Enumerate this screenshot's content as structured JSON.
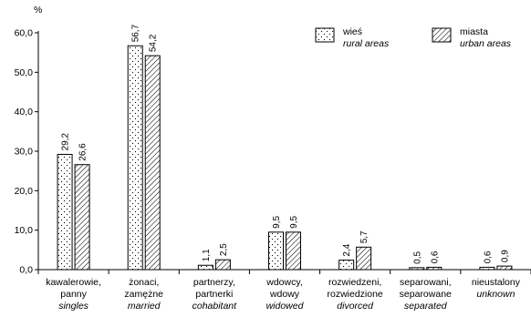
{
  "chart_data": {
    "type": "bar",
    "ylabel": "%",
    "ylim": [
      0,
      60
    ],
    "yticks": [
      "0,0",
      "10,0",
      "20,0",
      "30,0",
      "40,0",
      "50,0",
      "60,0"
    ],
    "grid": false,
    "legend_position": "top-right",
    "categories": [
      {
        "pl": [
          "kawalerowie,",
          "panny"
        ],
        "en": "singles"
      },
      {
        "pl": [
          "żonaci,",
          "zamężne"
        ],
        "en": "married"
      },
      {
        "pl": [
          "partnerzy,",
          "partnerki"
        ],
        "en": "cohabitant"
      },
      {
        "pl": [
          "wdowcy,",
          "wdowy"
        ],
        "en": "widowed"
      },
      {
        "pl": [
          "rozwiedzeni,",
          "rozwiedzione"
        ],
        "en": "divorced"
      },
      {
        "pl": [
          "separowani,",
          "separowane"
        ],
        "en": "separated"
      },
      {
        "pl": [
          "nieustalony"
        ],
        "en": "unknown"
      }
    ],
    "series": [
      {
        "name": "wieś",
        "name_en": "rural areas",
        "pattern": "dots",
        "values": [
          29.2,
          56.7,
          1.1,
          9.5,
          2.4,
          0.5,
          0.6
        ],
        "labels": [
          "29,2",
          "56,7",
          "1,1",
          "9,5",
          "2,4",
          "0,5",
          "0,6"
        ]
      },
      {
        "name": "miasta",
        "name_en": "urban areas",
        "pattern": "hatch",
        "values": [
          26.6,
          54.2,
          2.5,
          9.5,
          5.7,
          0.6,
          0.9
        ],
        "labels": [
          "26,6",
          "54,2",
          "2,5",
          "9,5",
          "5,7",
          "0,6",
          "0,9"
        ]
      }
    ]
  }
}
